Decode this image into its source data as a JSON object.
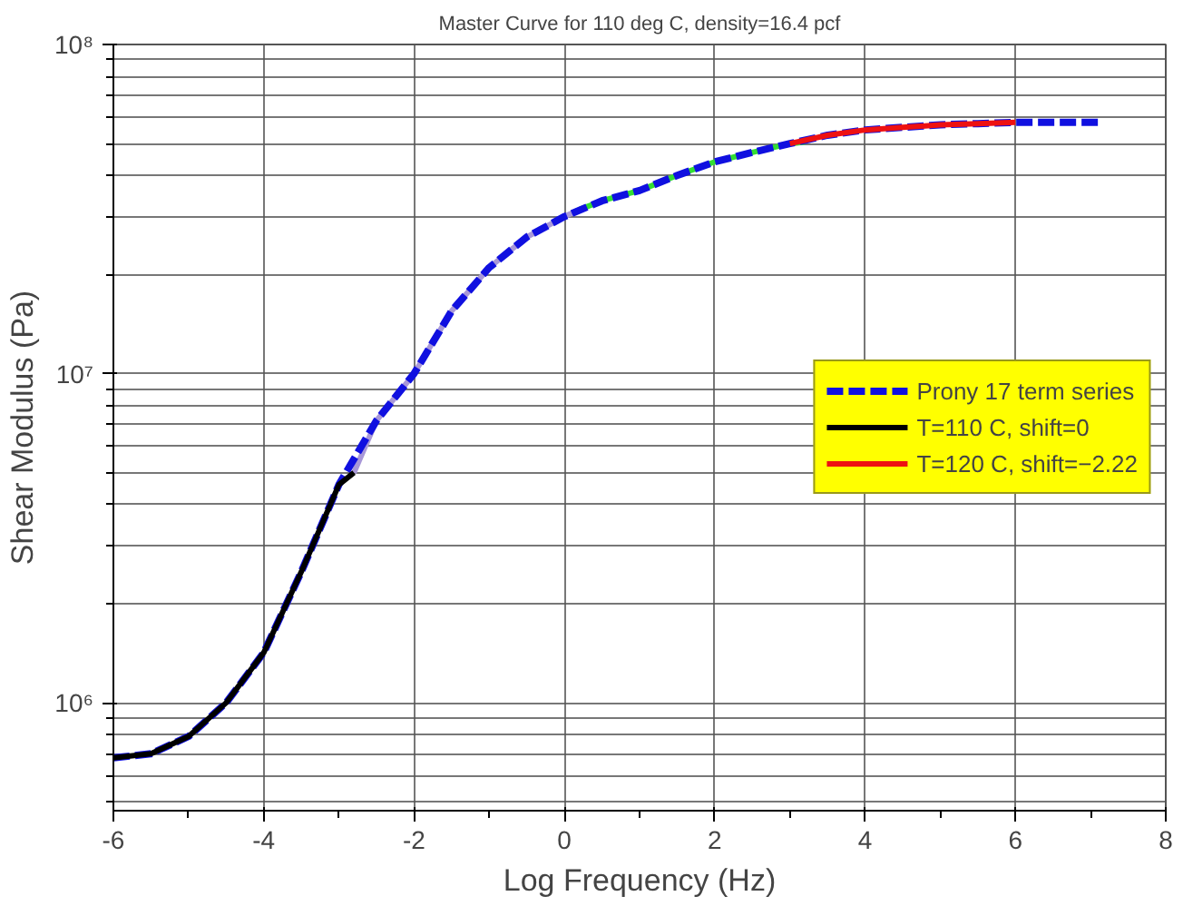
{
  "chart_data": {
    "type": "line",
    "title": "Master Curve for 110 deg C, density=16.4 pcf",
    "xlabel": "Log Frequency (Hz)",
    "ylabel": "Shear Modulus (Pa)",
    "log": "y",
    "grid": true,
    "legend": "right",
    "xlim": [
      -6,
      8
    ],
    "xticks": [
      -6,
      -4,
      -2,
      0,
      2,
      4,
      6,
      8
    ],
    "ylim": [
      470000,
      100000000
    ],
    "yticks": [
      {
        "value": 1000000,
        "label": "10⁶"
      },
      {
        "value": 10000000,
        "label": "10⁷"
      },
      {
        "value": 100000000,
        "label": "10⁸"
      }
    ],
    "series": [
      {
        "color": "#a898d8",
        "line_style": "solid",
        "x": [
          -2.8,
          -2.5,
          -2,
          -1.5,
          -1,
          -0.5,
          0,
          0.2
        ],
        "values": [
          5000000,
          7200000,
          10000000,
          15500000,
          21000000,
          26000000,
          30000000,
          31500000
        ]
      },
      {
        "color": "#33dd33",
        "line_style": "solid",
        "x": [
          0.2,
          0.5,
          1,
          1.5,
          2,
          2.5,
          3,
          3.2
        ],
        "values": [
          31500000,
          33500000,
          36000000,
          40000000,
          44000000,
          47000000,
          50000000,
          50500000
        ]
      },
      {
        "name": "Prony 17 term series",
        "color": "#1010e0",
        "line_style": "dashed",
        "x": [
          -6,
          -5.5,
          -5,
          -4.5,
          -4,
          -3.5,
          -3,
          -2.5,
          -2,
          -1.5,
          -1,
          -0.5,
          0,
          0.5,
          1,
          1.5,
          2,
          2.5,
          3,
          3.5,
          4,
          4.5,
          5,
          5.5,
          6,
          6.5,
          7.1
        ],
        "values": [
          680000,
          700000,
          790000,
          1000000,
          1420000,
          2500000,
          4600000,
          7200000,
          10000000,
          15500000,
          21000000,
          26000000,
          30000000,
          33500000,
          36000000,
          40000000,
          44000000,
          47000000,
          50000000,
          53000000,
          55000000,
          56000000,
          57000000,
          57500000,
          58000000,
          58000000,
          58000000
        ]
      },
      {
        "name": "T=110 C, shift=0",
        "color": "#000000",
        "line_style": "solid",
        "x": [
          -6,
          -5.5,
          -5,
          -4.5,
          -4,
          -3.5,
          -3,
          -2.8
        ],
        "values": [
          680000,
          700000,
          790000,
          1000000,
          1420000,
          2500000,
          4600000,
          5000000
        ]
      },
      {
        "name": "T=120 C, shift=−2.22",
        "color": "#ee1111",
        "line_style": "solid",
        "x": [
          3,
          3.5,
          4,
          4.5,
          5,
          5.5,
          6
        ],
        "values": [
          50000000,
          53000000,
          55000000,
          56000000,
          57000000,
          57500000,
          58000000
        ]
      }
    ]
  }
}
